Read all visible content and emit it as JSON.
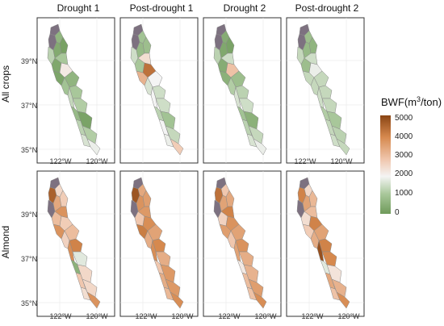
{
  "columns": [
    "Drought 1",
    "Post-drought 1",
    "Drought 2",
    "Post-drought 2"
  ],
  "rows": [
    "All crops",
    "Almond"
  ],
  "latitude_ticks": [
    "39°N",
    "37°N",
    "35°N"
  ],
  "longitude_ticks": [
    "122°W",
    "120°W"
  ],
  "legend": {
    "title_prefix": "BWF(m",
    "title_sup": "3",
    "title_suffix": "/ton)",
    "ticks": [
      "5000",
      "4000",
      "3000",
      "2000",
      "1000",
      "0"
    ],
    "colors": [
      "#6f9a5a",
      "#a8c79a",
      "#f4f4f4",
      "#f0c7ae",
      "#d6894e",
      "#8a4514"
    ],
    "missing_color": "#7d7180"
  },
  "map_values": {
    "All crops": {
      "Drought 1": [
        -1,
        -1,
        600,
        1200,
        350,
        150,
        300,
        1000,
        2000,
        250,
        600,
        900,
        1000,
        1300,
        1100,
        700,
        200,
        1200,
        1100,
        1500,
        1700
      ],
      "Post-drought 1": [
        -1,
        -1,
        900,
        1400,
        700,
        800,
        1000,
        2200,
        4200,
        3000,
        1800,
        1500,
        1400,
        1800,
        1400,
        1200,
        900,
        1800,
        1300,
        1700,
        2500
      ],
      "Drought 2": [
        -1,
        -1,
        400,
        1200,
        300,
        200,
        400,
        1400,
        2700,
        500,
        800,
        1100,
        1200,
        1500,
        1400,
        900,
        500,
        1200,
        1300,
        1500,
        1700
      ],
      "Post-drought 2": [
        -1,
        -1,
        800,
        1300,
        700,
        600,
        800,
        1400,
        1700,
        1300,
        1300,
        1300,
        1300,
        1400,
        1300,
        1100,
        1000,
        1300,
        1200,
        1400,
        1300
      ]
    },
    "Almond": {
      "Drought 1": [
        -1,
        4500,
        2300,
        -1,
        3200,
        2500,
        2800,
        3600,
        2500,
        3600,
        2800,
        2400,
        3900,
        3700,
        1600,
        500,
        2300,
        2600,
        2300,
        2200,
        3600
      ],
      "Post-drought 1": [
        -1,
        4700,
        3200,
        -1,
        3600,
        3400,
        2600,
        3500,
        3700,
        4000,
        3300,
        3100,
        3800,
        3700,
        3100,
        2600,
        3500,
        3100,
        3500,
        2900,
        3700
      ],
      "Drought 2": [
        -1,
        4200,
        2600,
        -1,
        3300,
        3200,
        2400,
        3900,
        3600,
        3400,
        3300,
        2600,
        3600,
        3300,
        3100,
        2000,
        3000,
        2800,
        3400,
        2700,
        3700
      ],
      "Post-drought 2": [
        -1,
        3900,
        2300,
        -1,
        3300,
        2900,
        2200,
        2800,
        3900,
        2500,
        3300,
        3100,
        3900,
        4800,
        3800,
        1600,
        2100,
        3200,
        3000,
        2700,
        3700
      ]
    }
  }
}
